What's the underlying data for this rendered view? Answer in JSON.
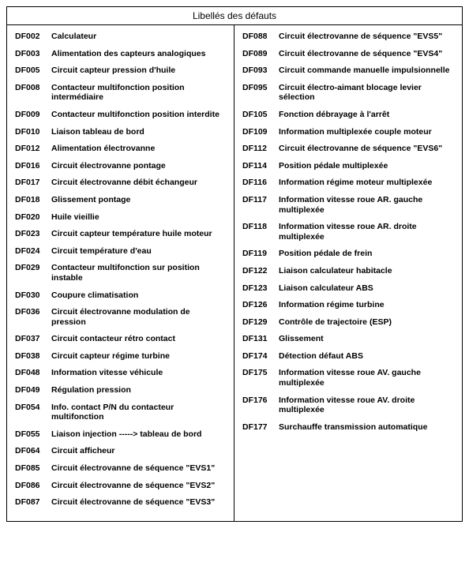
{
  "title": "Libellés des défauts",
  "leftColumn": [
    {
      "code": "DF002",
      "label": "Calculateur"
    },
    {
      "code": "DF003",
      "label": "Alimentation des capteurs analogiques"
    },
    {
      "code": "DF005",
      "label": "Circuit capteur pression d'huile"
    },
    {
      "code": "DF008",
      "label": "Contacteur multifonction position intermédiaire"
    },
    {
      "code": "DF009",
      "label": "Contacteur multifonction position interdite"
    },
    {
      "code": "DF010",
      "label": "Liaison tableau de bord"
    },
    {
      "code": "DF012",
      "label": "Alimentation électrovanne"
    },
    {
      "code": "DF016",
      "label": "Circuit électrovanne pontage"
    },
    {
      "code": "DF017",
      "label": "Circuit électrovanne débit échangeur"
    },
    {
      "code": "DF018",
      "label": "Glissement pontage"
    },
    {
      "code": "DF020",
      "label": "Huile vieillie"
    },
    {
      "code": "DF023",
      "label": "Circuit capteur température huile moteur"
    },
    {
      "code": "DF024",
      "label": "Circuit température d'eau"
    },
    {
      "code": "DF029",
      "label": "Contacteur multifonction sur position instable"
    },
    {
      "code": "DF030",
      "label": "Coupure climatisation"
    },
    {
      "code": "DF036",
      "label": "Circuit électrovanne modulation de pression"
    },
    {
      "code": "DF037",
      "label": "Circuit contacteur rétro contact"
    },
    {
      "code": "DF038",
      "label": "Circuit capteur régime turbine"
    },
    {
      "code": "DF048",
      "label": "Information vitesse véhicule"
    },
    {
      "code": "DF049",
      "label": "Régulation pression"
    },
    {
      "code": "DF054",
      "label": "Info. contact P/N du contacteur multifonction"
    },
    {
      "code": "DF055",
      "label": "Liaison injection -----> tableau de bord"
    },
    {
      "code": "DF064",
      "label": "Circuit afficheur"
    },
    {
      "code": "DF085",
      "label": "Circuit électrovanne de séquence \"EVS1\""
    },
    {
      "code": "DF086",
      "label": "Circuit électrovanne de séquence \"EVS2\""
    },
    {
      "code": "DF087",
      "label": "Circuit électrovanne de séquence \"EVS3\""
    }
  ],
  "rightColumn": [
    {
      "code": "DF088",
      "label": "Circuit électrovanne de séquence \"EVS5\""
    },
    {
      "code": "DF089",
      "label": "Circuit électrovanne de séquence \"EVS4\""
    },
    {
      "code": "DF093",
      "label": "Circuit commande manuelle impulsionnelle"
    },
    {
      "code": "DF095",
      "label": "Circuit électro-aimant blocage levier sélection"
    },
    {
      "code": "DF105",
      "label": "Fonction débrayage à l'arrêt"
    },
    {
      "code": "DF109",
      "label": "Information multiplexée couple moteur"
    },
    {
      "code": "DF112",
      "label": "Circuit électrovanne de séquence \"EVS6\""
    },
    {
      "code": "DF114",
      "label": "Position pédale multiplexée"
    },
    {
      "code": "DF116",
      "label": "Information régime moteur multiplexée"
    },
    {
      "code": "DF117",
      "label": "Information vitesse roue AR. gauche multiplexée"
    },
    {
      "code": "DF118",
      "label": "Information vitesse roue AR. droite multiplexée"
    },
    {
      "code": "DF119",
      "label": "Position pédale de frein"
    },
    {
      "code": "DF122",
      "label": "Liaison calculateur habitacle"
    },
    {
      "code": "DF123",
      "label": "Liaison calculateur ABS"
    },
    {
      "code": "DF126",
      "label": "Information régime turbine"
    },
    {
      "code": "DF129",
      "label": "Contrôle de trajectoire (ESP)"
    },
    {
      "code": "DF131",
      "label": "Glissement"
    },
    {
      "code": "DF174",
      "label": "Détection défaut ABS"
    },
    {
      "code": "DF175",
      "label": "Information vitesse roue AV. gauche multiplexée"
    },
    {
      "code": "DF176",
      "label": "Information vitesse roue AV. droite multiplexée"
    },
    {
      "code": "DF177",
      "label": "Surchauffe transmission automatique"
    }
  ]
}
